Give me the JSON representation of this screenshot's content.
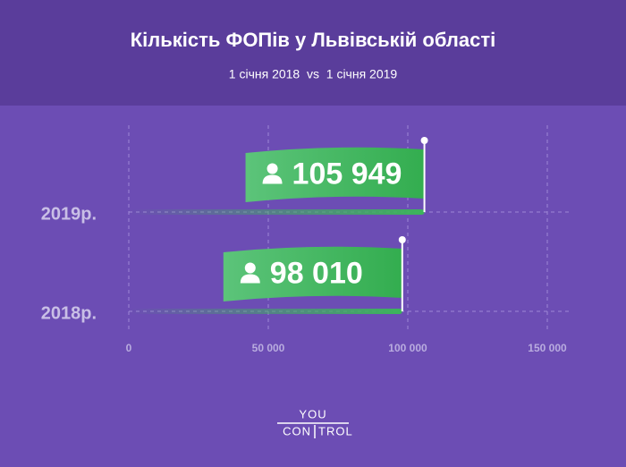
{
  "chart_data": {
    "type": "bar",
    "orientation": "horizontal",
    "title": "Кількість ФОПів у Львівській області",
    "subtitle": "1 січня 2018  vs  1 січня 2019",
    "categories": [
      "2019р.",
      "2018р."
    ],
    "values": [
      105949,
      98010
    ],
    "value_labels": [
      "105 949",
      "98 010"
    ],
    "color": "#3cb55a",
    "xlim": [
      0,
      150000
    ],
    "xticks": [
      0,
      {
        "value": 50000,
        "label": "50 000"
      },
      {
        "value": 100000,
        "label": "100 000"
      },
      {
        "value": 150000,
        "label": "150 000"
      }
    ],
    "grid": true
  },
  "brand": {
    "top": "YOU",
    "bottom": [
      "CON",
      "TROL"
    ]
  }
}
